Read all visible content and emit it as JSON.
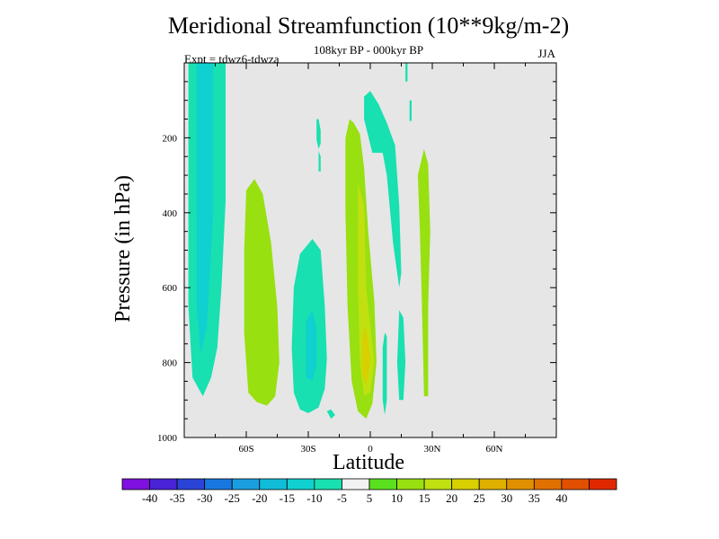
{
  "title": "Meridional Streamfunction (10**9kg/m-2)",
  "subtitle": "108kyr BP - 000kyr BP",
  "left_text": "Expt = tdwz6-tdwza",
  "right_text": "JJA",
  "colors": {
    "background_plot": "#e6e6e6",
    "palette": [
      "#7f10e0",
      "#4a22d8",
      "#2a44d8",
      "#1878e0",
      "#1a9ee0",
      "#10bcd8",
      "#10d0d0",
      "#18e0b0",
      "#f2f2f2",
      "#5ae01e",
      "#98e010",
      "#c0e010",
      "#d8d000",
      "#e0b000",
      "#e09000",
      "#e07000",
      "#e05000",
      "#e02800"
    ]
  },
  "chart_data": {
    "type": "contour",
    "title": "Meridional Streamfunction (10**9kg/m-2)",
    "xlabel": "Latitude",
    "ylabel": "Pressure (in hPa)",
    "xlim": [
      -90,
      90
    ],
    "ylim": [
      1000,
      0
    ],
    "x_ticks": [
      {
        "value": -60,
        "label": "60S"
      },
      {
        "value": -30,
        "label": "30S"
      },
      {
        "value": 0,
        "label": "0"
      },
      {
        "value": 30,
        "label": "30N"
      },
      {
        "value": 60,
        "label": "60N"
      }
    ],
    "y_ticks": [
      {
        "value": 200,
        "label": "200"
      },
      {
        "value": 400,
        "label": "400"
      },
      {
        "value": 600,
        "label": "600"
      },
      {
        "value": 800,
        "label": "800"
      },
      {
        "value": 1000,
        "label": "1000"
      }
    ],
    "colorbar": {
      "labels": [
        "-40",
        "-35",
        "-30",
        "-25",
        "-20",
        "-15",
        "-10",
        "-5",
        "5",
        "10",
        "15",
        "20",
        "25",
        "30",
        "35",
        "40"
      ],
      "bins": 18
    },
    "regions": [
      {
        "level": -10,
        "points": [
          [
            -88,
            0
          ],
          [
            -70,
            0
          ],
          [
            -70,
            370
          ],
          [
            -72,
            600
          ],
          [
            -74,
            760
          ],
          [
            -77,
            840
          ],
          [
            -81,
            890
          ],
          [
            -86,
            840
          ],
          [
            -88,
            650
          ]
        ]
      },
      {
        "level": -15,
        "points": [
          [
            -84,
            0
          ],
          [
            -76,
            0
          ],
          [
            -76,
            400
          ],
          [
            -79,
            700
          ],
          [
            -82,
            780
          ],
          [
            -84,
            650
          ]
        ]
      },
      {
        "level": 10,
        "points": [
          [
            -60,
            340
          ],
          [
            -56,
            310
          ],
          [
            -52,
            350
          ],
          [
            -48,
            480
          ],
          [
            -45,
            650
          ],
          [
            -44,
            800
          ],
          [
            -46,
            890
          ],
          [
            -50,
            915
          ],
          [
            -55,
            905
          ],
          [
            -59,
            880
          ],
          [
            -61,
            720
          ],
          [
            -61,
            500
          ]
        ]
      },
      {
        "level": -10,
        "points": [
          [
            -34,
            510
          ],
          [
            -28,
            470
          ],
          [
            -24,
            500
          ],
          [
            -22,
            650
          ],
          [
            -21,
            790
          ],
          [
            -22,
            870
          ],
          [
            -25,
            920
          ],
          [
            -30,
            935
          ],
          [
            -34,
            925
          ],
          [
            -37,
            880
          ],
          [
            -38,
            760
          ],
          [
            -37,
            600
          ]
        ]
      },
      {
        "level": -15,
        "points": [
          [
            -31,
            690
          ],
          [
            -28,
            660
          ],
          [
            -26,
            710
          ],
          [
            -26,
            810
          ],
          [
            -28,
            850
          ],
          [
            -31,
            840
          ]
        ]
      },
      {
        "level": -10,
        "points": [
          [
            -26,
            150
          ],
          [
            -25,
            150
          ],
          [
            -24,
            180
          ],
          [
            -24,
            215
          ],
          [
            -25,
            230
          ],
          [
            -26,
            205
          ]
        ]
      },
      {
        "level": -10,
        "points": [
          [
            -25,
            235
          ],
          [
            -24,
            250
          ],
          [
            -24,
            290
          ],
          [
            -25,
            290
          ]
        ]
      },
      {
        "level": 10,
        "points": [
          [
            -10,
            150
          ],
          [
            -8,
            160
          ],
          [
            -5,
            190
          ],
          [
            -3,
            280
          ],
          [
            -1,
            450
          ],
          [
            2,
            640
          ],
          [
            3,
            800
          ],
          [
            1,
            910
          ],
          [
            -2,
            950
          ],
          [
            -6,
            930
          ],
          [
            -9,
            850
          ],
          [
            -11,
            650
          ],
          [
            -12,
            400
          ],
          [
            -12,
            200
          ]
        ]
      },
      {
        "level": 15,
        "points": [
          [
            -6,
            320
          ],
          [
            -3,
            380
          ],
          [
            -2,
            600
          ],
          [
            0,
            700
          ],
          [
            2,
            800
          ],
          [
            0,
            880
          ],
          [
            -3,
            890
          ],
          [
            -5,
            800
          ],
          [
            -6,
            600
          ]
        ]
      },
      {
        "level": 20,
        "points": [
          [
            -3,
            700
          ],
          [
            -1,
            740
          ],
          [
            0,
            800
          ],
          [
            -2,
            860
          ],
          [
            -4,
            830
          ],
          [
            -4,
            750
          ]
        ]
      },
      {
        "level": -10,
        "points": [
          [
            -3,
            90
          ],
          [
            0,
            75
          ],
          [
            4,
            110
          ],
          [
            8,
            160
          ],
          [
            12,
            220
          ],
          [
            14,
            380
          ],
          [
            15,
            560
          ],
          [
            14,
            600
          ],
          [
            11,
            480
          ],
          [
            8,
            300
          ],
          [
            6,
            240
          ],
          [
            1,
            240
          ],
          [
            -3,
            150
          ]
        ]
      },
      {
        "level": -10,
        "points": [
          [
            17,
            0
          ],
          [
            18,
            0
          ],
          [
            18,
            50
          ],
          [
            17,
            50
          ]
        ]
      },
      {
        "level": -10,
        "points": [
          [
            19,
            100
          ],
          [
            20,
            100
          ],
          [
            20,
            155
          ],
          [
            19,
            155
          ]
        ]
      },
      {
        "level": 10,
        "points": [
          [
            23,
            300
          ],
          [
            26,
            230
          ],
          [
            28,
            270
          ],
          [
            29,
            450
          ],
          [
            28,
            650
          ],
          [
            28,
            890
          ],
          [
            26,
            890
          ],
          [
            25,
            650
          ],
          [
            24,
            450
          ]
        ]
      },
      {
        "level": -10,
        "points": [
          [
            14,
            660
          ],
          [
            16,
            680
          ],
          [
            17,
            800
          ],
          [
            16,
            900
          ],
          [
            14,
            900
          ],
          [
            13,
            800
          ]
        ]
      },
      {
        "level": -10,
        "points": [
          [
            7,
            720
          ],
          [
            8,
            730
          ],
          [
            8,
            900
          ],
          [
            7,
            940
          ],
          [
            6,
            900
          ],
          [
            6,
            760
          ]
        ]
      },
      {
        "level": -10,
        "points": [
          [
            -21,
            930
          ],
          [
            -19,
            950
          ],
          [
            -17,
            940
          ],
          [
            -19,
            925
          ]
        ]
      }
    ]
  }
}
